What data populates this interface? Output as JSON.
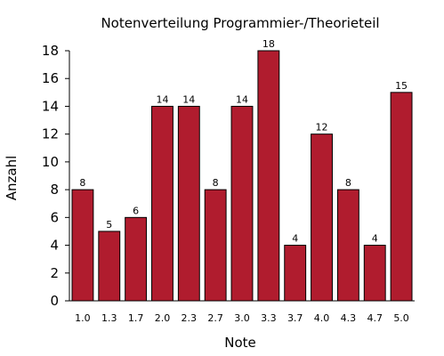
{
  "chart_data": {
    "type": "bar",
    "title": "Notenverteilung Programmier-/Theorieteil",
    "xlabel": "Note",
    "ylabel": "Anzahl",
    "categories": [
      "1.0",
      "1.3",
      "1.7",
      "2.0",
      "2.3",
      "2.7",
      "3.0",
      "3.3",
      "3.7",
      "4.0",
      "4.3",
      "4.7",
      "5.0"
    ],
    "values": [
      8,
      5,
      6,
      14,
      14,
      8,
      14,
      18,
      4,
      12,
      8,
      4,
      15
    ],
    "data_labels": [
      "8",
      "5",
      "6",
      "14",
      "14",
      "8",
      "14",
      "18",
      "4",
      "12",
      "8",
      "4",
      "15"
    ],
    "yticks": [
      "0",
      "2",
      "4",
      "6",
      "8",
      "10",
      "12",
      "14",
      "16",
      "18"
    ],
    "ylim": [
      0,
      18
    ],
    "grid": false,
    "bar_color": "#b01c2e"
  }
}
